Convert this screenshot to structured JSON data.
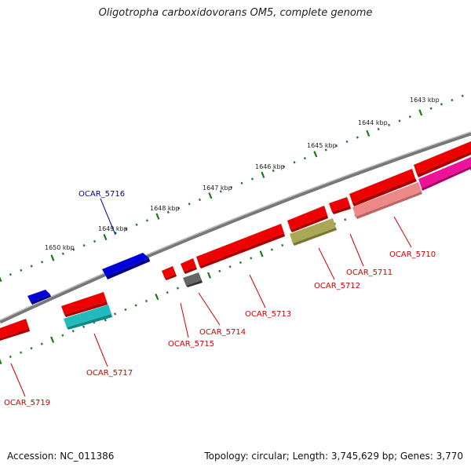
{
  "title": "Oligotropha carboxidovorans OM5, complete genome",
  "footer": {
    "accession": "Accession: NC_011386",
    "topology": "Topology: circular; Length: 3,745,629 bp; Genes: 3,770"
  },
  "colors": {
    "backbone": "#777777",
    "tick": "#1a7a1a",
    "label_red": "#cc0000",
    "label_blue": "#0000aa",
    "gene_red": "#ee0000",
    "gene_blue": "#0000dd",
    "gene_cyan": "#22bbbb",
    "gene_grey": "#666666",
    "gene_olive": "#aaa855",
    "gene_pink": "#ee8888",
    "gene_magenta": "#ee1199"
  },
  "scale_labels": [
    "1643 kbp",
    "1644 kbp",
    "1645 kbp",
    "1646 kbp",
    "1647 kbp",
    "1648 kbp",
    "1649 kbp",
    "1650 kbp"
  ],
  "gene_labels": [
    "OCAR_5716",
    "OCAR_5710",
    "OCAR_5711",
    "OCAR_5712",
    "OCAR_5713",
    "OCAR_5714",
    "OCAR_5715",
    "OCAR_5717",
    "OCAR_5719"
  ]
}
